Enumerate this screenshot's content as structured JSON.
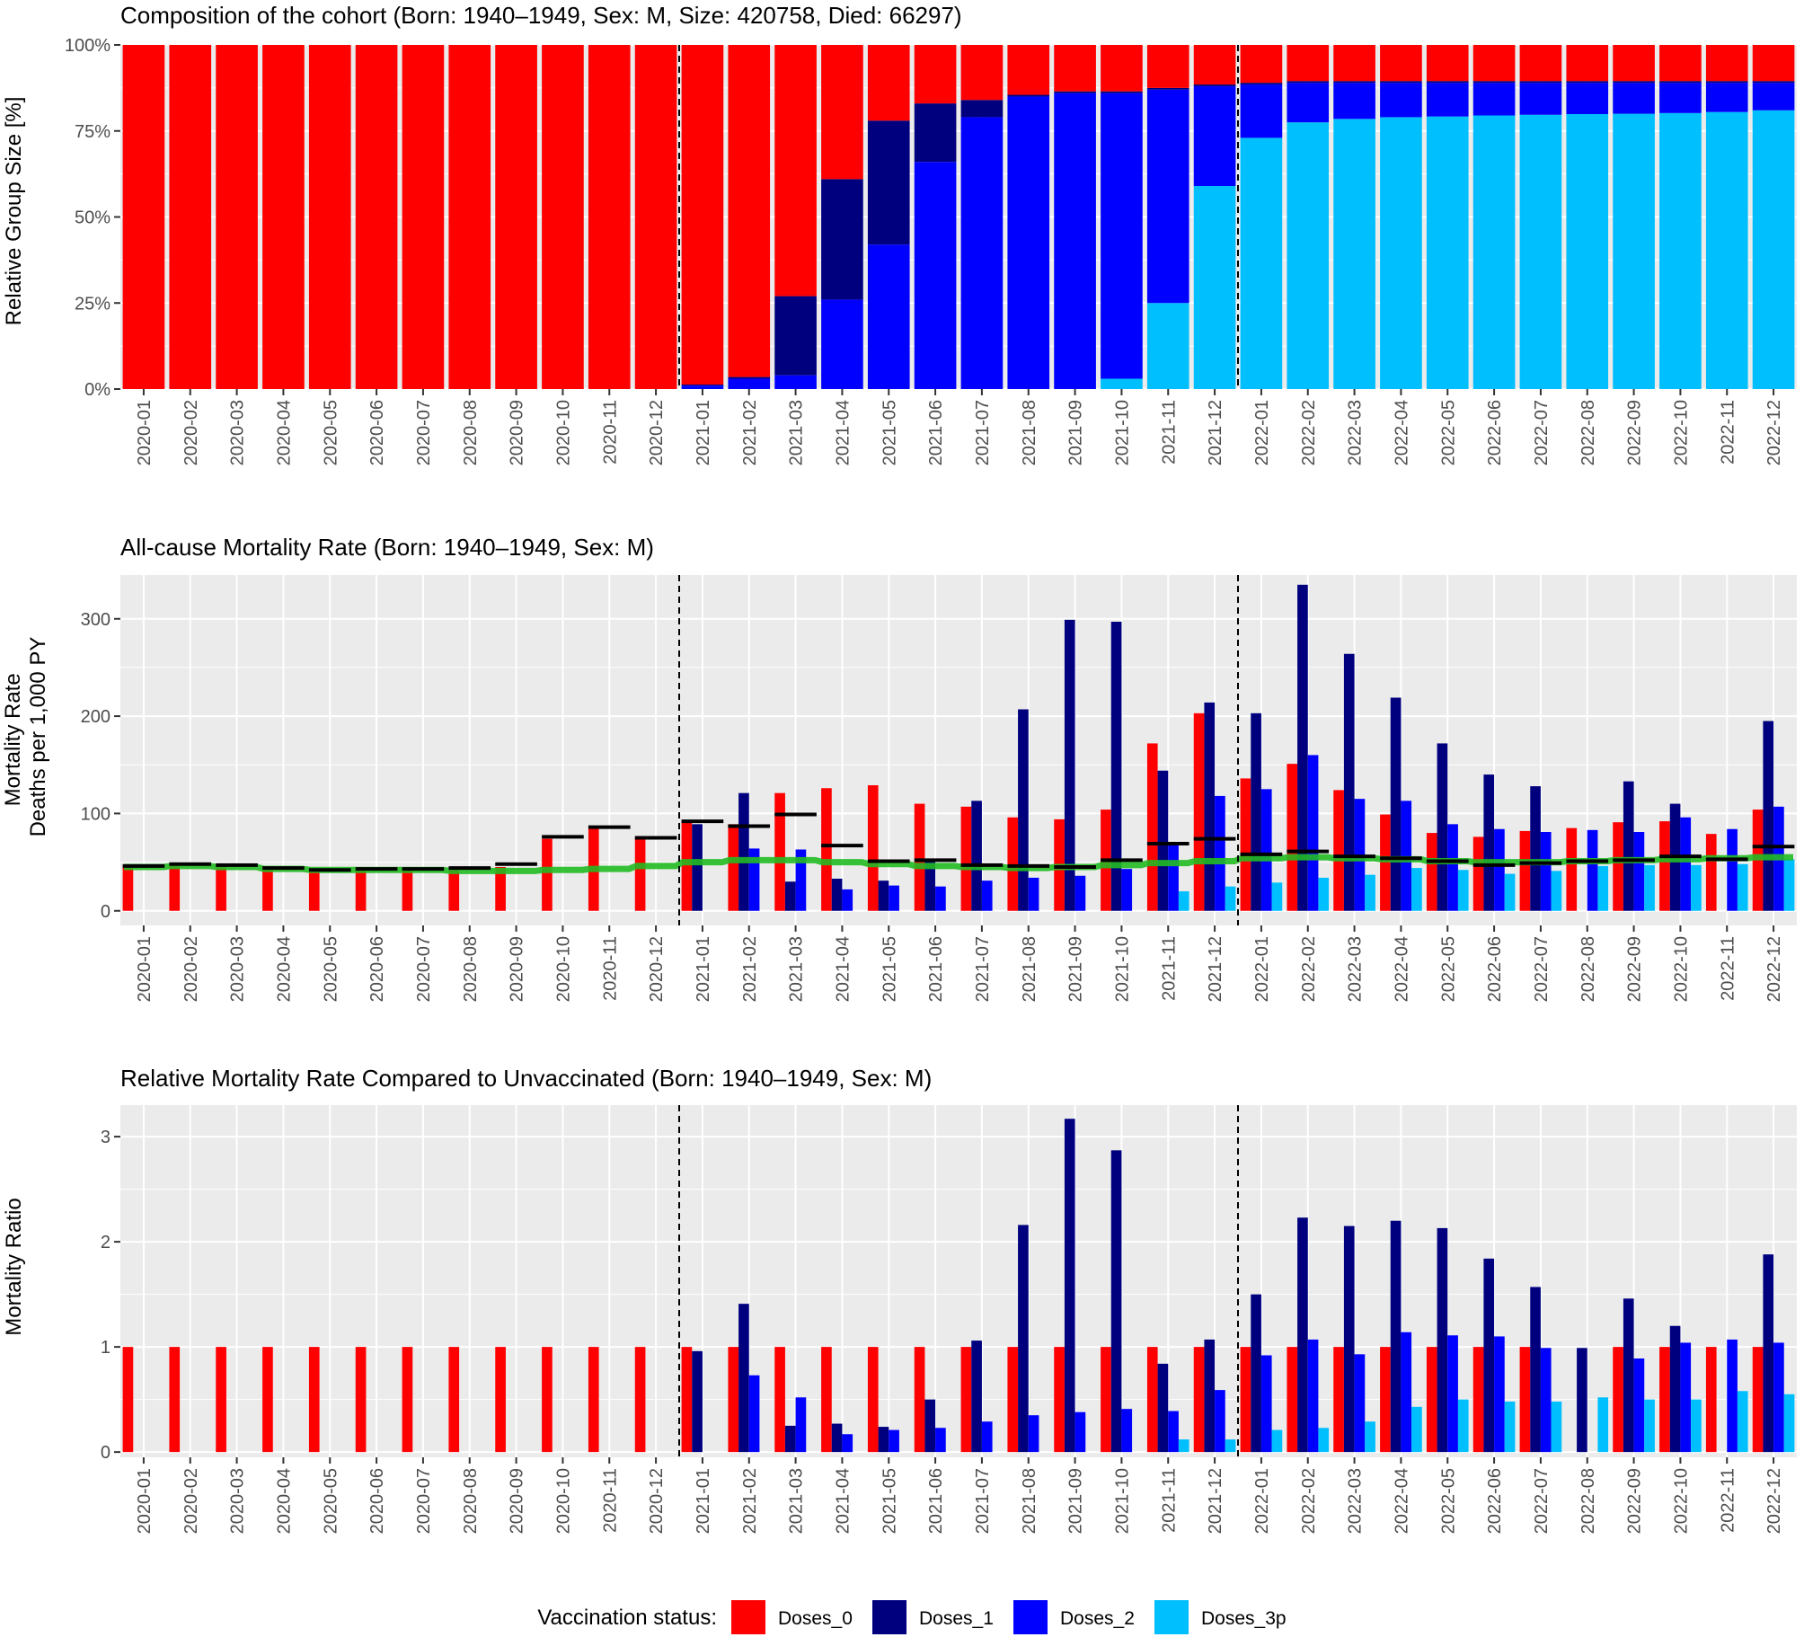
{
  "colors": {
    "Doses_0": "#ff0000",
    "Doses_1": "#00007f",
    "Doses_2": "#0000ff",
    "Doses_3p": "#00bfff",
    "panel_bg": "#ebebeb",
    "grid": "#ffffff",
    "expected_line": "#22bb22",
    "reference_mark": "#000000"
  },
  "months": [
    "2020-01",
    "2020-02",
    "2020-03",
    "2020-04",
    "2020-05",
    "2020-06",
    "2020-07",
    "2020-08",
    "2020-09",
    "2020-10",
    "2020-11",
    "2020-12",
    "2021-01",
    "2021-02",
    "2021-03",
    "2021-04",
    "2021-05",
    "2021-06",
    "2021-07",
    "2021-08",
    "2021-09",
    "2021-10",
    "2021-11",
    "2021-12",
    "2022-01",
    "2022-02",
    "2022-03",
    "2022-04",
    "2022-05",
    "2022-06",
    "2022-07",
    "2022-08",
    "2022-09",
    "2022-10",
    "2022-11",
    "2022-12"
  ],
  "divider_after_months": [
    "2020-12",
    "2021-12"
  ],
  "legend": {
    "title": "Vaccination status:",
    "items": [
      "Doses_0",
      "Doses_1",
      "Doses_2",
      "Doses_3p"
    ]
  },
  "chart_data": [
    {
      "type": "bar",
      "stacked": true,
      "title": "Composition of the cohort (Born: 1940–1949, Sex: M, Size: 420758, Died: 66297)",
      "xlabel": "",
      "ylabel": "Relative Group Size [%]",
      "ylim": [
        0,
        100
      ],
      "yticks": [
        0,
        25,
        50,
        75,
        100
      ],
      "ytick_labels": [
        "0%",
        "25%",
        "50%",
        "75%",
        "100%"
      ],
      "grid": true,
      "series": [
        {
          "name": "Doses_3p",
          "values": [
            0,
            0,
            0,
            0,
            0,
            0,
            0,
            0,
            0,
            0,
            0,
            0,
            0,
            0,
            0,
            0,
            0,
            0,
            0,
            0,
            0,
            3,
            25,
            59,
            73,
            77.5,
            78.5,
            79,
            79.2,
            79.5,
            79.7,
            79.9,
            80,
            80.2,
            80.5,
            81
          ]
        },
        {
          "name": "Doses_2",
          "values": [
            0,
            0,
            0,
            0,
            0,
            0,
            0,
            0,
            0,
            0,
            0,
            0,
            1,
            3,
            4,
            26,
            42,
            66,
            79,
            85,
            86,
            83,
            62,
            29,
            15.5,
            11.5,
            10.5,
            10,
            9.8,
            9.5,
            9.3,
            9.1,
            9,
            8.8,
            8.5,
            8
          ]
        },
        {
          "name": "Doses_1",
          "values": [
            0,
            0,
            0,
            0,
            0,
            0,
            0,
            0,
            0,
            0,
            0,
            0,
            0.3,
            0.5,
            23,
            35,
            36,
            17,
            5,
            0.5,
            0.5,
            0.5,
            0.5,
            0.5,
            0.5,
            0.5,
            0.5,
            0.5,
            0.5,
            0.5,
            0.5,
            0.5,
            0.5,
            0.5,
            0.5,
            0.5
          ]
        },
        {
          "name": "Doses_0",
          "values": [
            100,
            100,
            100,
            100,
            100,
            100,
            100,
            100,
            100,
            100,
            100,
            100,
            98.7,
            96.5,
            73,
            39,
            22,
            17,
            16,
            14.5,
            13.5,
            13.5,
            12.5,
            11.5,
            11,
            10.5,
            10.5,
            10.5,
            10.5,
            10.5,
            10.5,
            10.5,
            10.5,
            10.5,
            10.5,
            10.5
          ]
        }
      ]
    },
    {
      "type": "bar",
      "title": "All-cause Mortality Rate (Born: 1940–1949, Sex: M)",
      "xlabel": "",
      "ylabel": "Mortality Rate\nDeaths per 1,000 PY",
      "ylim": [
        -15,
        345
      ],
      "yticks": [
        0,
        100,
        200,
        300
      ],
      "grid": true,
      "series": [
        {
          "name": "Doses_0",
          "values": [
            45,
            46,
            45,
            43,
            40,
            42,
            42,
            42,
            45,
            74,
            86,
            75,
            92,
            89,
            121,
            126,
            129,
            110,
            107,
            96,
            94,
            104,
            172,
            203,
            136,
            151,
            124,
            99,
            80,
            76,
            82,
            85,
            91,
            92,
            79,
            104
          ]
        },
        {
          "name": "Doses_1",
          "values": [
            null,
            null,
            null,
            null,
            null,
            null,
            null,
            null,
            null,
            null,
            null,
            null,
            89,
            121,
            30,
            33,
            31,
            52,
            113,
            207,
            299,
            297,
            144,
            214,
            203,
            335,
            264,
            219,
            172,
            140,
            128,
            null,
            133,
            110,
            null,
            195
          ]
        },
        {
          "name": "Doses_2",
          "values": [
            null,
            null,
            null,
            null,
            null,
            null,
            null,
            null,
            null,
            null,
            null,
            null,
            null,
            64,
            63,
            22,
            26,
            25,
            31,
            34,
            36,
            43,
            70,
            118,
            125,
            160,
            115,
            113,
            89,
            84,
            81,
            83,
            81,
            96,
            84,
            107
          ]
        },
        {
          "name": "Doses_3p",
          "values": [
            null,
            null,
            null,
            null,
            null,
            null,
            null,
            null,
            null,
            null,
            null,
            null,
            null,
            null,
            null,
            null,
            null,
            null,
            null,
            null,
            null,
            null,
            20,
            25,
            29,
            34,
            37,
            44,
            42,
            38,
            41,
            46,
            47,
            47,
            48,
            53
          ]
        }
      ],
      "reference_marks": [
        46,
        48,
        47,
        44,
        42,
        43,
        43,
        44,
        48,
        76,
        86,
        75,
        92,
        87,
        99,
        67,
        51,
        52,
        47,
        46,
        45,
        52,
        69,
        74,
        58,
        61,
        56,
        54,
        51,
        47,
        49,
        51,
        52,
        56,
        53,
        66
      ],
      "expected_trend": [
        45,
        46,
        45,
        43,
        42,
        42,
        42,
        41,
        41,
        42,
        43,
        46,
        50,
        52,
        52,
        50,
        48,
        46,
        45,
        44,
        45,
        47,
        49,
        51,
        54,
        55,
        54,
        53,
        51,
        50,
        50,
        51,
        52,
        53,
        54,
        55
      ]
    },
    {
      "type": "bar",
      "title": "Relative Mortality Rate Compared to Unvaccinated (Born: 1940–1949, Sex: M)",
      "xlabel": "",
      "ylabel": "Mortality Ratio",
      "ylim": [
        -0.05,
        3.3
      ],
      "yticks": [
        0,
        1,
        2,
        3
      ],
      "grid": true,
      "series": [
        {
          "name": "Doses_0",
          "values": [
            1,
            1,
            1,
            1,
            1,
            1,
            1,
            1,
            1,
            1,
            1,
            1,
            1,
            1,
            1,
            1,
            1,
            1,
            1,
            1,
            1,
            1,
            1,
            1,
            1,
            1,
            1,
            1,
            1,
            1,
            1,
            null,
            1,
            1,
            1,
            1
          ]
        },
        {
          "name": "Doses_1",
          "values": [
            null,
            null,
            null,
            null,
            null,
            null,
            null,
            null,
            null,
            null,
            null,
            null,
            0.96,
            1.41,
            0.25,
            0.27,
            0.24,
            0.5,
            1.06,
            2.16,
            3.17,
            2.87,
            0.84,
            1.07,
            1.5,
            2.23,
            2.15,
            2.2,
            2.13,
            1.84,
            1.57,
            0.99,
            1.46,
            1.2,
            null,
            1.88
          ]
        },
        {
          "name": "Doses_2",
          "values": [
            null,
            null,
            null,
            null,
            null,
            null,
            null,
            null,
            null,
            null,
            null,
            null,
            null,
            0.73,
            0.52,
            0.17,
            0.21,
            0.23,
            0.29,
            0.35,
            0.38,
            0.41,
            0.39,
            0.59,
            0.92,
            1.07,
            0.93,
            1.14,
            1.11,
            1.1,
            0.99,
            null,
            0.89,
            1.04,
            1.07,
            1.04
          ]
        },
        {
          "name": "Doses_3p",
          "values": [
            null,
            null,
            null,
            null,
            null,
            null,
            null,
            null,
            null,
            null,
            null,
            null,
            null,
            null,
            null,
            null,
            null,
            null,
            null,
            null,
            null,
            null,
            0.12,
            0.12,
            0.21,
            0.23,
            0.29,
            0.43,
            0.5,
            0.48,
            0.48,
            0.52,
            0.5,
            0.5,
            0.58,
            0.55
          ]
        }
      ]
    }
  ]
}
